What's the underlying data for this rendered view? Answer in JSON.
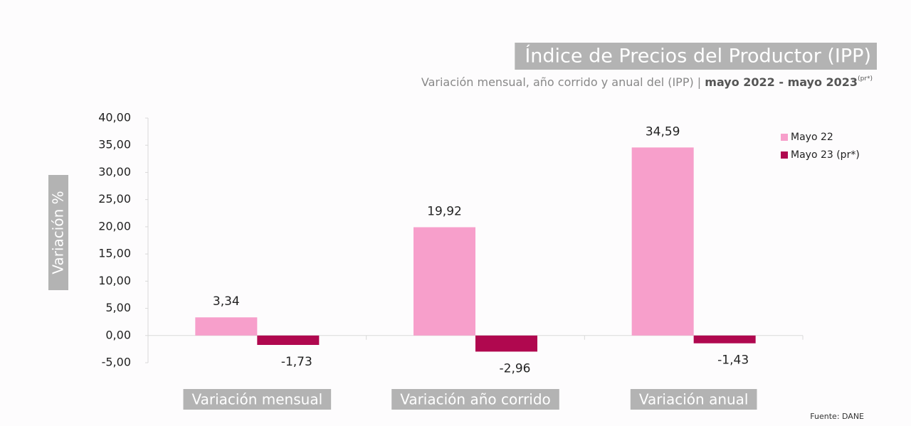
{
  "chart_data": {
    "type": "bar",
    "title": "Índice de Precios del Productor (IPP)",
    "subtitle": {
      "text": "Variación mensual, año corrido y anual del (IPP) | ",
      "highlight": "mayo 2022 - mayo 2023",
      "superscript": "(pr*)"
    },
    "y_label": "Variación %",
    "source": "Fuente: DANE",
    "categories": [
      "Variación mensual",
      "Variación año corrido",
      "Variación anual"
    ],
    "series": [
      {
        "name": "Mayo 22",
        "color": "#f79fcb",
        "values": [
          3.34,
          19.92,
          34.59
        ],
        "value_labels": [
          "3,34",
          "19,92",
          "34,59"
        ]
      },
      {
        "name": "Mayo 23 (pr*)",
        "color": "#b0084f",
        "values": [
          -1.73,
          -2.96,
          -1.43
        ],
        "value_labels": [
          "-1,73",
          "-2,96",
          "-1,43"
        ]
      }
    ],
    "ylim": [
      -5,
      40
    ],
    "yticks": [
      {
        "value": -5,
        "label": "-5,00"
      },
      {
        "value": 0,
        "label": "0,00"
      },
      {
        "value": 5,
        "label": "5,00"
      },
      {
        "value": 10,
        "label": "10,00"
      },
      {
        "value": 15,
        "label": "15,00"
      },
      {
        "value": 20,
        "label": "20,00"
      },
      {
        "value": 25,
        "label": "25,00"
      },
      {
        "value": 30,
        "label": "30,00"
      },
      {
        "value": 35,
        "label": "35,00"
      },
      {
        "value": 40,
        "label": "40,00"
      }
    ],
    "legend": "upper right",
    "grid": false
  }
}
